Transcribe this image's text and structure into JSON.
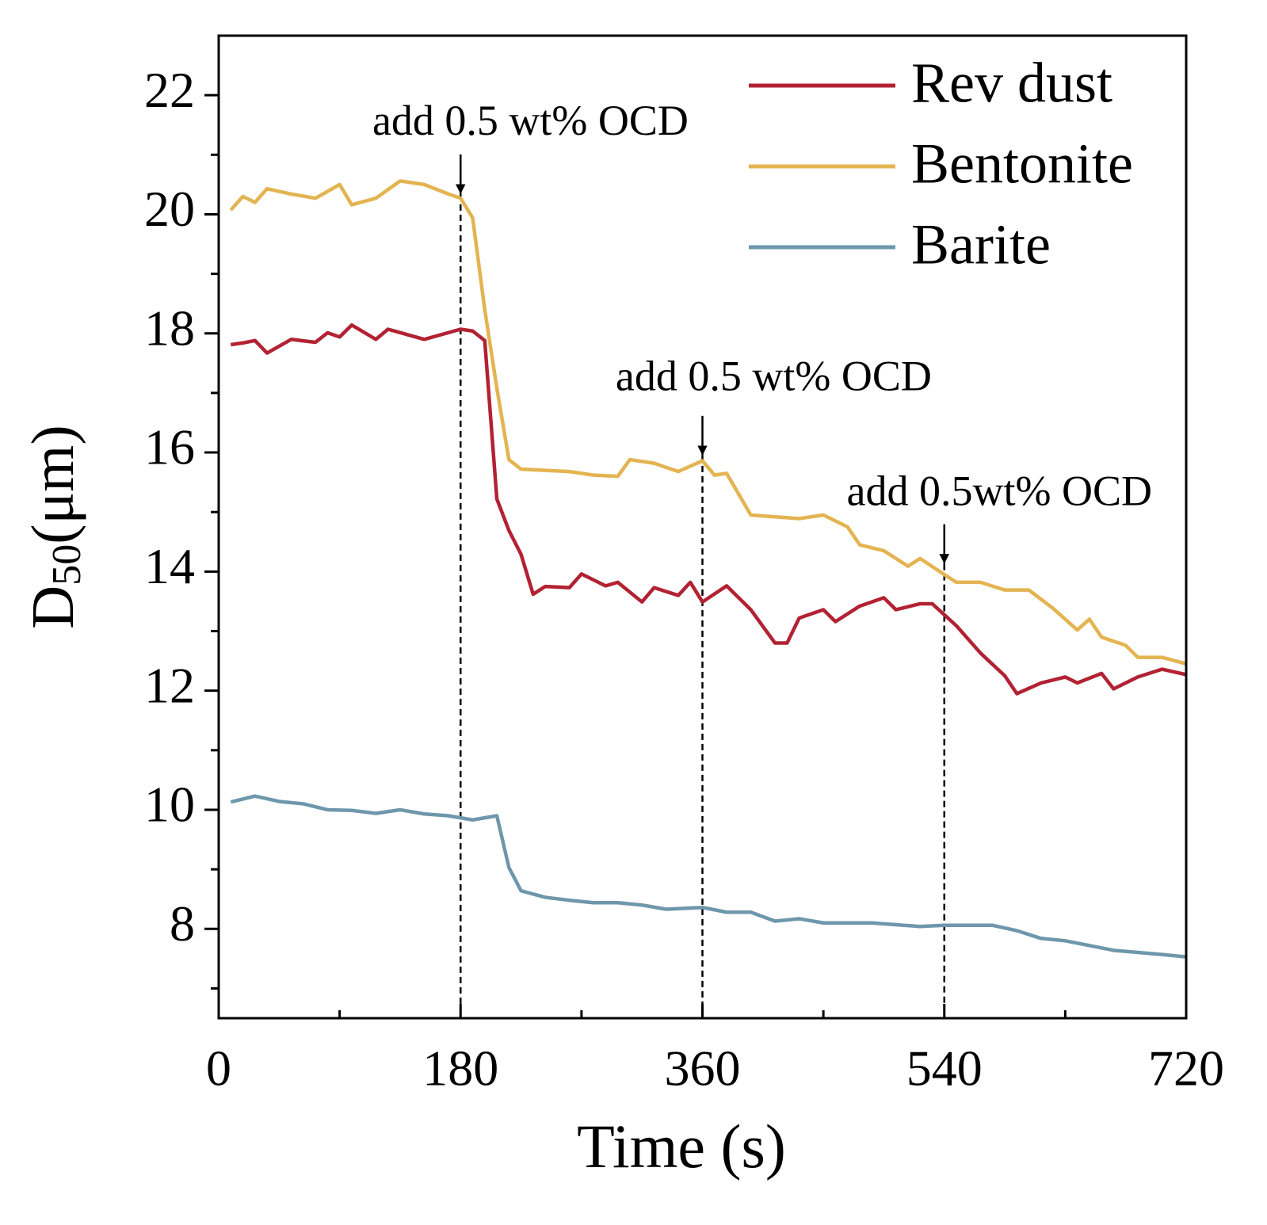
{
  "chart_data": {
    "type": "line",
    "xlabel": "Time (s)",
    "ylabel": {
      "main": "D",
      "sub": "50",
      "unit": "(μm)"
    },
    "xlim": [
      0,
      720
    ],
    "ylim": [
      6.5,
      23
    ],
    "xticks": [
      0,
      180,
      360,
      540,
      720
    ],
    "yticks": [
      8,
      10,
      12,
      14,
      16,
      18,
      20,
      22
    ],
    "x_minor_ticks": [
      90,
      270,
      450,
      630
    ],
    "y_minor_ticks": [
      7,
      9,
      11,
      13,
      15,
      17,
      19,
      21
    ],
    "legend": "upper right",
    "series": [
      {
        "name": "Rev dust",
        "color": "#b22232",
        "x": [
          9,
          18,
          27,
          36,
          54,
          72,
          81,
          90,
          99,
          117,
          126,
          153,
          180,
          189,
          198,
          207,
          216,
          225,
          234,
          243,
          261,
          270,
          288,
          297,
          315,
          324,
          342,
          351,
          360,
          378,
          396,
          414,
          423,
          432,
          450,
          459,
          477,
          495,
          504,
          522,
          531,
          549,
          567,
          585,
          594,
          612,
          630,
          639,
          657,
          666,
          684,
          702,
          720
        ],
        "values": [
          17.81,
          17.84,
          17.88,
          17.67,
          17.9,
          17.85,
          18.01,
          17.94,
          18.14,
          17.9,
          18.07,
          17.9,
          18.07,
          18.04,
          17.88,
          15.22,
          14.69,
          14.29,
          13.62,
          13.75,
          13.73,
          13.96,
          13.76,
          13.82,
          13.49,
          13.73,
          13.6,
          13.82,
          13.49,
          13.76,
          13.36,
          12.8,
          12.8,
          13.22,
          13.36,
          13.16,
          13.42,
          13.56,
          13.36,
          13.46,
          13.46,
          13.09,
          12.63,
          12.25,
          11.95,
          12.13,
          12.23,
          12.13,
          12.29,
          12.03,
          12.23,
          12.36,
          12.27
        ]
      },
      {
        "name": "Bentonite",
        "color": "#e3b451",
        "x": [
          9,
          18,
          27,
          36,
          54,
          72,
          90,
          99,
          117,
          135,
          153,
          171,
          180,
          189,
          198,
          207,
          216,
          225,
          243,
          261,
          279,
          297,
          306,
          324,
          342,
          360,
          369,
          378,
          396,
          414,
          432,
          450,
          468,
          477,
          495,
          513,
          522,
          540,
          549,
          567,
          585,
          603,
          621,
          639,
          648,
          657,
          675,
          684,
          702,
          720
        ],
        "values": [
          20.07,
          20.3,
          20.2,
          20.43,
          20.34,
          20.27,
          20.5,
          20.16,
          20.27,
          20.56,
          20.5,
          20.34,
          20.27,
          19.94,
          18.4,
          17.08,
          15.88,
          15.72,
          15.7,
          15.68,
          15.62,
          15.6,
          15.88,
          15.82,
          15.68,
          15.86,
          15.62,
          15.65,
          14.95,
          14.92,
          14.89,
          14.95,
          14.75,
          14.45,
          14.35,
          14.09,
          14.22,
          13.95,
          13.82,
          13.82,
          13.69,
          13.69,
          13.38,
          13.02,
          13.2,
          12.9,
          12.76,
          12.56,
          12.56,
          12.45
        ]
      },
      {
        "name": "Barite",
        "color": "#6e97ab",
        "x": [
          9,
          27,
          45,
          63,
          81,
          99,
          117,
          135,
          153,
          171,
          189,
          207,
          216,
          225,
          243,
          261,
          279,
          297,
          315,
          333,
          360,
          378,
          396,
          414,
          432,
          450,
          486,
          522,
          540,
          576,
          594,
          612,
          630,
          666,
          702,
          720
        ],
        "values": [
          10.13,
          10.23,
          10.14,
          10.1,
          10.0,
          9.99,
          9.94,
          10.0,
          9.93,
          9.9,
          9.83,
          9.9,
          9.03,
          8.64,
          8.53,
          8.48,
          8.44,
          8.44,
          8.4,
          8.33,
          8.36,
          8.28,
          8.28,
          8.13,
          8.17,
          8.1,
          8.1,
          8.04,
          8.06,
          8.06,
          7.97,
          7.84,
          7.8,
          7.64,
          7.57,
          7.53
        ]
      }
    ],
    "annotations": [
      {
        "text": "add 0.5 wt% OCD",
        "x": 180,
        "y": 20.34,
        "text_x": 232,
        "text_y": 21.5
      },
      {
        "text": "add 0.5 wt% OCD",
        "x": 360,
        "y": 15.95,
        "text_x": 413,
        "text_y": 17.21
      },
      {
        "text": "add 0.5wt% OCD",
        "x": 540,
        "y": 14.13,
        "text_x": 581,
        "text_y": 15.28
      }
    ]
  }
}
